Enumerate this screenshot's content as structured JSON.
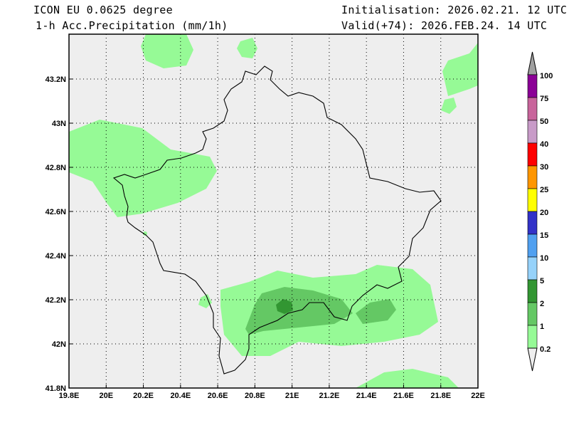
{
  "header": {
    "model": "ICON EU 0.0625 degree",
    "variable": "1-h Acc.Precipitation (mm/1h)",
    "initialisation": "Initialisation: 2026.02.21. 12 UTC",
    "valid": "Valid(+74): 2026.FEB.24. 14 UTC"
  },
  "map": {
    "background_color": "#eeeeee",
    "lon_ticks": [
      "19.8E",
      "20E",
      "20.2E",
      "20.4E",
      "20.6E",
      "20.8E",
      "21E",
      "21.2E",
      "21.4E",
      "21.6E",
      "21.8E",
      "22E"
    ],
    "lat_ticks": [
      "41.8N",
      "42N",
      "42.2N",
      "42.4N",
      "42.6N",
      "42.8N",
      "43N",
      "43.2N"
    ]
  },
  "colorbar": {
    "labels": [
      "100",
      "75",
      "50",
      "40",
      "30",
      "25",
      "20",
      "15",
      "10",
      "5",
      "2",
      "1",
      "0.2"
    ],
    "colors": [
      "#8b0096",
      "#c8649b",
      "#c89bc8",
      "#ff0000",
      "#ff9600",
      "#ffff00",
      "#3232c8",
      "#50a0f0",
      "#96d2fa",
      "#329632",
      "#64c864",
      "#96fa96"
    ],
    "over_color": "#a0a0a0",
    "under_color": "#eeeeee"
  }
}
